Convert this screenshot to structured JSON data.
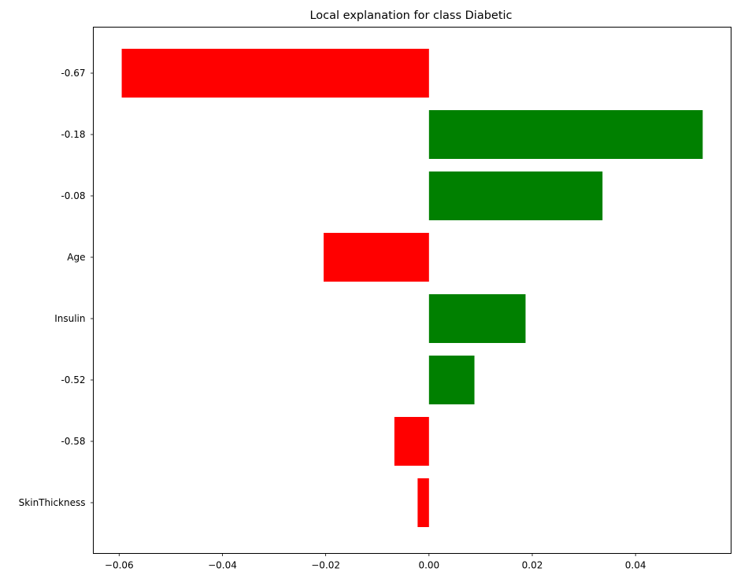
{
  "chart_data": {
    "type": "bar",
    "orientation": "horizontal",
    "title": "Local explanation for class Diabetic",
    "xlabel": "",
    "ylabel": "",
    "categories": [
      "-0.67",
      "-0.18",
      "-0.08",
      "Age",
      "Insulin",
      "-0.52",
      "-0.58",
      "SkinThickness"
    ],
    "values": [
      -0.0595,
      0.053,
      0.0336,
      -0.0204,
      0.0187,
      0.0088,
      -0.0067,
      -0.0022
    ],
    "xlim": [
      -0.065,
      0.0585
    ],
    "xticks": [
      -0.06,
      -0.04,
      -0.02,
      0.0,
      0.02,
      0.04
    ],
    "xtick_labels": [
      "−0.06",
      "−0.04",
      "−0.02",
      "0.00",
      "0.02",
      "0.04"
    ],
    "colors": {
      "positive": "#008000",
      "negative": "#ff0000"
    },
    "grid": false,
    "legend": "none"
  }
}
